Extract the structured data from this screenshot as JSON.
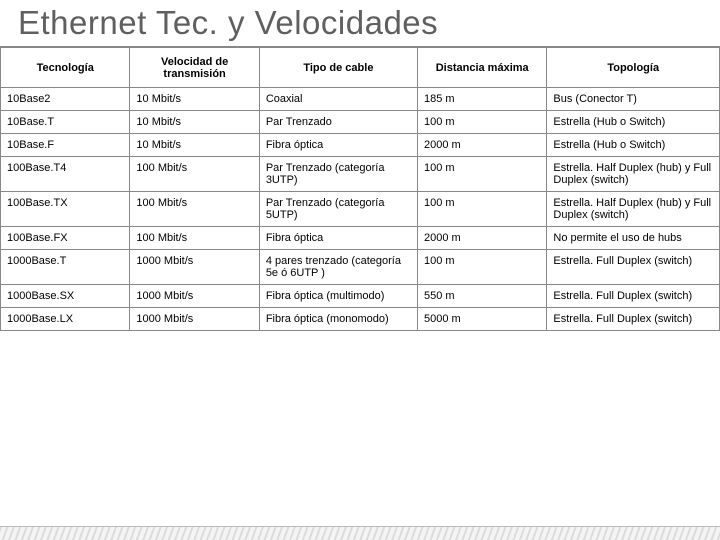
{
  "title": {
    "text": "Ethernet Tec. y Velocidades",
    "color": "#5f5f5f",
    "fontsize": 33
  },
  "table": {
    "header_fontsize": 11,
    "cell_fontsize": 11,
    "header_color": "#000000",
    "cell_color": "#000000",
    "border_color": "#888888",
    "col_widths_pct": [
      18,
      18,
      22,
      18,
      24
    ],
    "columns": [
      "Tecnología",
      "Velocidad de transmisión",
      "Tipo de cable",
      "Distancia máxima",
      "Topología"
    ],
    "rows": [
      [
        "10Base2",
        "10 Mbit/s",
        "Coaxial",
        "185 m",
        "Bus (Conector T)"
      ],
      [
        "10Base.T",
        "10 Mbit/s",
        "Par Trenzado",
        "100 m",
        "Estrella (Hub o Switch)"
      ],
      [
        "10Base.F",
        "10 Mbit/s",
        "Fibra óptica",
        "2000 m",
        "Estrella (Hub o Switch)"
      ],
      [
        "100Base.T4",
        "100 Mbit/s",
        "Par Trenzado (categoría 3UTP)",
        "100 m",
        "Estrella. Half Duplex (hub) y Full Duplex (switch)"
      ],
      [
        "100Base.TX",
        "100 Mbit/s",
        "Par Trenzado (categoría 5UTP)",
        "100 m",
        "Estrella. Half Duplex (hub) y Full Duplex (switch)"
      ],
      [
        "100Base.FX",
        "100 Mbit/s",
        "Fibra óptica",
        "2000 m",
        "No permite el uso de hubs"
      ],
      [
        "1000Base.T",
        "1000 Mbit/s",
        "4 pares trenzado (categoría 5e ó 6UTP )",
        "100 m",
        "Estrella. Full Duplex (switch)"
      ],
      [
        "1000Base.SX",
        "1000 Mbit/s",
        "Fibra óptica (multimodo)",
        "550 m",
        "Estrella. Full Duplex (switch)"
      ],
      [
        "1000Base.LX",
        "1000 Mbit/s",
        "Fibra óptica (monomodo)",
        "5000 m",
        "Estrella. Full Duplex (switch)"
      ]
    ]
  }
}
